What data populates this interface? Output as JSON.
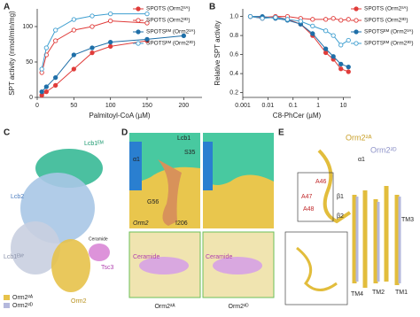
{
  "chart_data": [
    {
      "type": "line",
      "panel_label": "A",
      "y_label": "SPT activity (nmol/min/mg)",
      "x_label": "Palmitoyl-CoA (µM)",
      "xlim": [
        0,
        225
      ],
      "xticks": [
        0,
        50,
        100,
        150,
        200
      ],
      "ylim": [
        0,
        125
      ],
      "yticks": [
        0,
        50,
        100
      ],
      "log_x": false,
      "x": [
        6.25,
        12.5,
        25,
        50,
        75,
        100,
        150,
        200
      ],
      "series": [
        {
          "name": "SPOTS (Orm2²ᴬ)",
          "color": "#e03c3a",
          "marker": "filled",
          "values": [
            3,
            8,
            17,
            40,
            63,
            72,
            80,
            null
          ]
        },
        {
          "name": "SPOTS (Orm2²ᴰ)",
          "color": "#e03c3a",
          "marker": "open",
          "values": [
            35,
            60,
            80,
            95,
            100,
            108,
            105,
            null
          ]
        },
        {
          "name": "SPOTSᴱᴹ (Orm2²ᴬ)",
          "color": "#1f6fa8",
          "marker": "filled",
          "values": [
            8,
            15,
            28,
            60,
            70,
            78,
            82,
            87
          ]
        },
        {
          "name": "SPOTSᴱᴹ (Orm2²ᴰ)",
          "color": "#3f9fd0",
          "marker": "open",
          "values": [
            40,
            70,
            95,
            110,
            115,
            118,
            118,
            null
          ]
        }
      ]
    },
    {
      "type": "line",
      "panel_label": "B",
      "y_label": "Relative SPT activity",
      "x_label": "C8-PhCer (µM)",
      "xlim": [
        0.001,
        20
      ],
      "xticks": [
        0.001,
        0.01,
        0.1,
        1,
        10
      ],
      "ylim": [
        0.15,
        1.08
      ],
      "yticks": [
        0.2,
        0.4,
        0.6,
        0.8,
        {
          "value": 1,
          "label": "1.0"
        }
      ],
      "log_x": true,
      "x": [
        0.002,
        0.006,
        0.02,
        0.06,
        0.2,
        0.6,
        2,
        4,
        8,
        16
      ],
      "series": [
        {
          "name": "SPOTS (Orm2²ᴬ)",
          "color": "#e03c3a",
          "marker": "filled",
          "values": [
            1.0,
            0.99,
            1.0,
            0.97,
            0.92,
            0.8,
            0.62,
            0.55,
            0.45,
            0.42
          ]
        },
        {
          "name": "SPOTS (Orm2²ᴰ)",
          "color": "#e03c3a",
          "marker": "open",
          "values": [
            1.0,
            0.98,
            1.0,
            1.0,
            0.98,
            0.97,
            0.97,
            0.98,
            0.96,
            0.97
          ]
        },
        {
          "name": "SPOTSᴱᴹ (Orm2²ᴬ)",
          "color": "#1f6fa8",
          "marker": "filled",
          "values": [
            1.0,
            1.0,
            0.98,
            0.96,
            0.92,
            0.82,
            0.66,
            0.58,
            0.5,
            0.47
          ]
        },
        {
          "name": "SPOTSᴱᴹ (Orm2²ᴰ)",
          "color": "#3f9fd0",
          "marker": "open",
          "values": [
            1.0,
            0.98,
            0.99,
            0.97,
            0.95,
            0.9,
            0.85,
            0.8,
            0.7,
            0.75
          ]
        }
      ]
    }
  ],
  "panel_c": {
    "letter": "C",
    "lcb1": "Lcb1ᴱᴹ",
    "lcb2": "Lcb2",
    "lcb1p": "Lcb1ᴱᴹ'",
    "tsc3": "Tsc3",
    "orm2": "Orm2",
    "ceramide": "Ceramide",
    "legend": [
      "Orm2²ᴬ",
      "Orm2²ᴰ"
    ]
  },
  "panel_d": {
    "letter": "D",
    "lcb1": "Lcb1",
    "alpha1": "α1",
    "s35": "S35",
    "g56": "G56",
    "i206": "I206",
    "orm2": "Orm2",
    "ceramide": "Ceramide",
    "captions": [
      "Orm2²ᴬ",
      "Orm2²ᴰ"
    ]
  },
  "panel_e": {
    "letter": "E",
    "orm2a": "Orm2²ᴬ",
    "orm2d": "Orm2²ᴰ",
    "alpha1": "α1",
    "a46": "A46",
    "a47": "A47",
    "a48": "A48",
    "beta1": "β1",
    "beta2": "β2",
    "tm3": "TM3",
    "tm4": "TM4",
    "tm2": "TM2",
    "tm1": "TM1"
  }
}
